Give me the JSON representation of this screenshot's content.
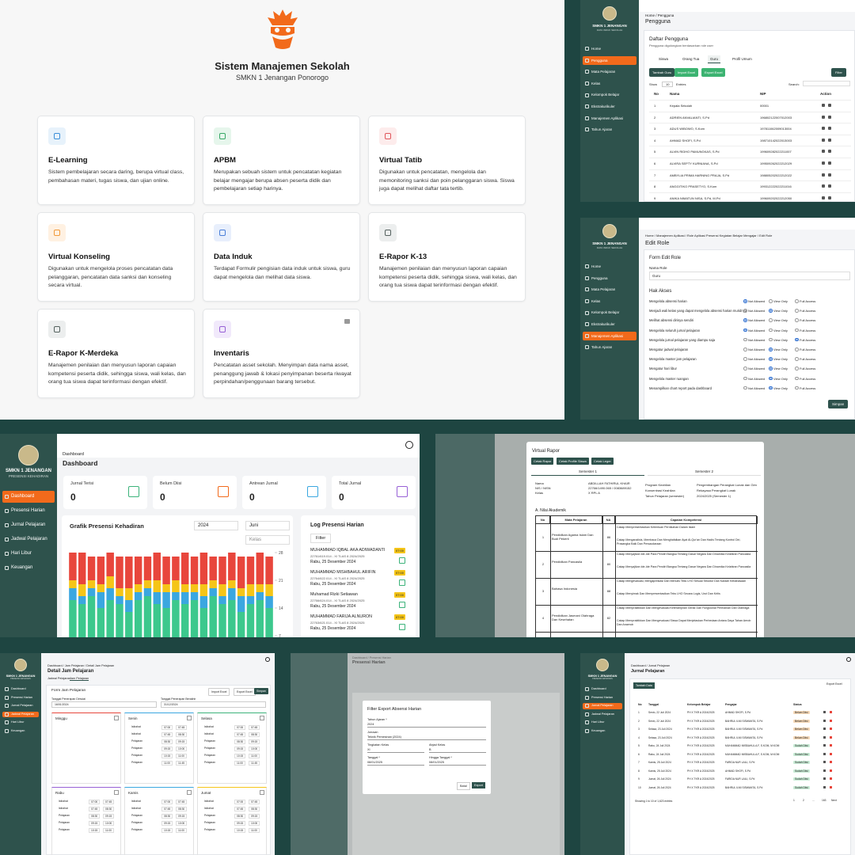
{
  "home": {
    "title": "Sistem Manajemen Sekolah",
    "subtitle": "SMKN 1 Jenangan Ponorogo",
    "cards": [
      {
        "title": "E-Learning",
        "desc": "Sistem pembelajaran secara daring, berupa virtual class, pembahasan materi, tugas siswa, dan ujian online."
      },
      {
        "title": "APBM",
        "desc": "Merupakan sebuah sistem untuk pencatatan kegiatan belajar mengajar berupa absen peserta didik dan pembelajaran setiap harinya."
      },
      {
        "title": "Virtual Tatib",
        "desc": "Digunakan untuk pencatatan, mengelola dan memonitoring sanksi dan poin pelanggaran siswa. Siswa juga dapat melihat daftar tata tertib."
      },
      {
        "title": "Virtual Konseling",
        "desc": "Digunakan untuk mengelola proses pencatatan data pelanggaran, pencatatan data sanksi dan konseling secara virtual."
      },
      {
        "title": "Data Induk",
        "desc": "Terdapat Formulir pengisian data induk untuk siswa, guru dapat mengelola dan melihat data siswa."
      },
      {
        "title": "E-Rapor K-13",
        "desc": "Manajemen penilaian dan menyusun laporan capaian kompetensi peserta didik, sehingga siswa, wali kelas, dan orang tua siswa dapat terinformasi dengan efektif."
      },
      {
        "title": "E-Rapor K-Merdeka",
        "desc": "Manajemen penilaian dan menyusun laporan capaian kompetensi peserta didik, sehingga siswa, wali kelas, dan orang tua siswa dapat terinformasi dengan efektif."
      },
      {
        "title": "Inventaris",
        "desc": "Pencatatan asset sekolah. Menyimpan data nama asset, penanggung jawab & lokasi penyimpanan beserta riwayat perpindahan/penggunaan barang tersebut."
      }
    ]
  },
  "pengguna": {
    "school": "SMKN 1 JENANGAN",
    "school_sub": "DATA INDUK SEKOLAH",
    "menu": [
      "Home",
      "Pengguna",
      "Mata Pelajaran",
      "Kelas",
      "Kelompok Belajar",
      "Ekstrakurikuler",
      "Manajemen Aplikasi",
      "Tahun Ajaran"
    ],
    "breadcrumb": "Home / Pengguna",
    "heading": "Pengguna",
    "card_title": "Daftar Pengguna",
    "card_sub": "Pengguna digolongkan berdasarkan role user",
    "tabs": [
      "Siswa",
      "Orang Tua",
      "Guru",
      "Profil Umum"
    ],
    "buttons": [
      "Tambah Guru",
      "Import Excel",
      "Export Excel"
    ],
    "filter": "Filter",
    "show": "Show",
    "show_n": "10",
    "entries": "Entries",
    "search": "Search:",
    "columns": [
      "No",
      "Nama",
      "NIP",
      "Action"
    ],
    "rows": [
      [
        "1",
        "Kepala Sekolah",
        "00001"
      ],
      [
        "2",
        "ADRIEN ANVALIANTI, S.Pd",
        "196802122007012003"
      ],
      [
        "3",
        "ADUS WIBOWO, S.Kom",
        "197811062009013004"
      ],
      [
        "4",
        "AHMAD SHOFI, S.Pd",
        "198710142022013003"
      ],
      [
        "5",
        "ALVIN RIDHO PAMUNGKAS, S.Pd",
        "199609282022211007"
      ],
      [
        "6",
        "ALVIRA SEPTY KURNIANA, S.Pd",
        "199509262022212029"
      ],
      [
        "7",
        "AMBYLIA PRIMA HARNING PRAJA, S.Pd",
        "198805202022212022"
      ],
      [
        "8",
        "ANGGITIKO PRASETYO, S.Kom",
        "199312222022211016"
      ],
      [
        "9",
        "ANIKA NIMATUN NISA, S.Pd, M.Pd",
        "199609202022212050"
      ]
    ]
  },
  "edit_role": {
    "breadcrumb": "Home / Manajemen Aplikasi / Role Aplikasi Presensi Kegiatan Belajar Mengajar / Edit Role",
    "heading": "Edit Role",
    "form_title": "Form Edit Role",
    "name_label": "Nama Role",
    "name_value": "Guru",
    "access_title": "Hak Akses",
    "options": [
      "Not Allowed",
      "View Only",
      "Full Access"
    ],
    "permissions": [
      {
        "label": "Mengelola absensi harian",
        "selected": 0
      },
      {
        "label": "Menjadi wali kelas yang dapat mengelola absensi harian muridnya",
        "selected": 1
      },
      {
        "label": "Melihat absensi dirinya sendiri",
        "selected": 0
      },
      {
        "label": "Mengelola seluruh jurnal pelajaran",
        "selected": 0
      },
      {
        "label": "Mengelola jurnal pelajaran yang diampu saja",
        "selected": 2
      },
      {
        "label": "Mengatur jadwal pelajaran",
        "selected": 1
      },
      {
        "label": "Mengelola master jam pelajaran",
        "selected": 1
      },
      {
        "label": "Mengatur hari libur",
        "selected": 1
      },
      {
        "label": "Mengelola master ruangan",
        "selected": 1
      },
      {
        "label": "Menampilkan chart report pada dashboard",
        "selected": 1
      }
    ],
    "save": "Simpan"
  },
  "dashboard": {
    "school": "SMKN 1 JENANGAN",
    "school_sub": "PRESENSI KEHADIRAN",
    "menu": [
      "Dashboard",
      "Presensi Harian",
      "Jurnal Pelajaran",
      "Jadwal Pelajaran",
      "Hari Libur",
      "Keuangan"
    ],
    "breadcrumb": "Dashboard",
    "heading": "Dashboard",
    "stats": [
      {
        "label": "Jurnal Terisi",
        "value": "0"
      },
      {
        "label": "Belum Diisi",
        "value": "0"
      },
      {
        "label": "Antrean Jurnal",
        "value": "0"
      },
      {
        "label": "Total Jurnal",
        "value": "0"
      }
    ],
    "year": "2024",
    "month": "Juni",
    "class": "Kelas",
    "log_title": "Log Presensi Harian",
    "filter": "Filter",
    "log": [
      {
        "name": "MUHAMMAD IQBAL AKA ADIWADANTI",
        "id": "22761/619.014 - XI TLAS 8 2024/2025",
        "date": "Rabu, 25 Desember 2024",
        "badge": "07:00"
      },
      {
        "name": "MUHAMMAD MISHBAHUL ARIFIN",
        "id": "22764/622.014 - XI TLAS 8 2024/2025",
        "date": "Rabu, 25 Desember 2024",
        "badge": "07:00"
      },
      {
        "name": "Muhamad Rizki Setiawan",
        "id": "22766/624.014 - XI TLAS 8 2024/2025",
        "date": "Rabu, 25 Desember 2024",
        "badge": "07:00"
      },
      {
        "name": "MUHAMMAD FARIJA ALNURON",
        "id": "22763/621.014 - XI TLAS 8 2024/2025",
        "date": "Rabu, 25 Desember 2024",
        "badge": "07:00"
      }
    ]
  },
  "chart_data": {
    "type": "bar",
    "stacked": true,
    "title": "Grafik Presensi Kehadiran",
    "categories": [
      null,
      null,
      null,
      null,
      null,
      null,
      null,
      null,
      null,
      null,
      null,
      null,
      null,
      null,
      null,
      null,
      null,
      null,
      null,
      null,
      null,
      null
    ],
    "series": [
      {
        "color": "#3cc88d",
        "values": [
          16,
          15,
          17,
          14,
          16,
          15,
          13,
          16,
          17,
          15,
          14,
          16,
          15,
          16,
          14,
          17,
          15,
          16,
          13,
          15,
          16,
          14
        ]
      },
      {
        "color": "#3aa7e0",
        "values": [
          3,
          2,
          2,
          4,
          3,
          2,
          3,
          2,
          2,
          3,
          4,
          2,
          3,
          2,
          3,
          2,
          2,
          3,
          4,
          2,
          2,
          3
        ]
      },
      {
        "color": "#f5c518",
        "values": [
          2,
          3,
          2,
          2,
          3,
          2,
          3,
          2,
          2,
          3,
          2,
          3,
          2,
          2,
          3,
          2,
          3,
          2,
          2,
          3,
          2,
          3
        ]
      },
      {
        "color": "#e8463c",
        "values": [
          7,
          8,
          6,
          7,
          6,
          8,
          8,
          7,
          6,
          7,
          7,
          6,
          8,
          7,
          8,
          6,
          7,
          7,
          8,
          7,
          8,
          7
        ]
      }
    ],
    "ylim": [
      0,
      28
    ],
    "yticks": [
      0,
      7,
      14,
      21,
      28
    ],
    "grid": false
  },
  "rapor": {
    "title": "Virtual Rapor",
    "buttons": [
      "Cetak Rapor",
      "Cetak Profile Siswa",
      "Cetak Leger"
    ],
    "tabs": [
      "Semester 1",
      "Semester 2"
    ],
    "info_left": [
      [
        "Nama",
        "ABDILLAH FATHIRUL KHAIR"
      ],
      [
        "NIS / NISN",
        "22766/1490.065 / 0083689152"
      ],
      [
        "Kelas",
        "X RPL A"
      ]
    ],
    "info_right": [
      [
        "Program Keahlian",
        "Pengembangan Perangkat Lunak dan Gim"
      ],
      [
        "Konsentrasi Keahlian",
        "Rekayasa Perangkat Lunak"
      ],
      [
        "Tahun Pelajaran (semester)",
        "2024/2025 (Semester 1)"
      ]
    ],
    "section": "A. Nilai Akademik",
    "columns": [
      "No",
      "Mata Pelajaran",
      "NA",
      "Capaian Kompetensi"
    ],
    "rows": [
      {
        "no": "1",
        "subject": "Pendidikan Agama Islam Dan Budi Pekerti",
        "na": "86",
        "notes": [
          "Cakap Mempresentasikan Ketentuan Pernikahan Dalam Islam",
          "Cakap Menganalisis, Membaca Dan Menghafalkan Ayat Al-Qur'an Dan Hadis Tentang Kontrol Diri, Prasangka Baik Dan Persaudaraan"
        ]
      },
      {
        "no": "2",
        "subject": "Pendidikan Pancasila",
        "na": "80",
        "notes": [
          "Cakap Menyajikan Ide-Ide Para Pendiri Bangsa Tentang Dasar Negara Dan Dinamika Kelahiran Pancasila",
          "Cakap Menyajikan Ide-Ide Para Pendiri Bangsa Tentang Dasar Negara Dan Dinamika Kelahiran Pancasila"
        ]
      },
      {
        "no": "3",
        "subject": "Bahasa Indonesia",
        "na": "88",
        "notes": [
          "Cakap Mengevaluasi, Mengapresiasi Dan Menulis Teks LHO Sesuai Struktur Dan Kaidah Kebahasaan",
          "Cakap Menyimak Dan Mempresentasikan Teks LHO Secara Logis, Urut Dan Kritis"
        ]
      },
      {
        "no": "4",
        "subject": "Pendidikan Jasmani Olahraga Dan Kesehatan",
        "na": "82",
        "notes": [
          "Cakap Mempraktikkan Dan Mengevaluasi Keterampilan Gerak Dan Fungsional Permainan Dan Olahraga",
          "Cakap Mempraktikkan Dan Mengevaluasi Siswa Dapat Menjelaskan Perbedaan Antara Daya Tahan Aerob Dan Anaerob"
        ]
      }
    ]
  },
  "jadwal": {
    "school": "SMKN 1 JENANGAN",
    "school_sub": "PRESENSI KEHADIRAN",
    "menu": [
      "Dashboard",
      "Presensi Harian",
      "Jurnal Pelajaran",
      "Jadwal Pelajaran",
      "Hari Libur",
      "Keuangan"
    ],
    "breadcrumb": "Dashboard / Jam Pelajaran / Detail Jam Pelajaran",
    "heading": "Detail Jam Pelajaran",
    "tabs": [
      "Jadwal Pelajaran",
      "Jam Pelajaran"
    ],
    "form_title": "Form Jam Pelajaran",
    "buttons": [
      "Import Excel",
      "Export Excel",
      "Simpan"
    ],
    "start_label": "Tanggal Penerapan Dimulai",
    "start_value": "16/01/2024",
    "end_label": "Tanggal Penerapan Berakhir",
    "end_value": "31/12/2024",
    "days": [
      {
        "name": "Minggu",
        "slots": []
      },
      {
        "name": "Senin",
        "slots": [
          [
            "Istirahat",
            "07:00",
            "07:45"
          ],
          [
            "Istirahat",
            "07:45",
            "08:30"
          ],
          [
            "Pelajaran",
            "08:30",
            "09:15"
          ],
          [
            "Pelajaran",
            "09:15",
            "10:00"
          ],
          [
            "Pelajaran",
            "10:15",
            "11:00"
          ],
          [
            "Pelajaran",
            "11:00",
            "11:45"
          ]
        ]
      },
      {
        "name": "Selasa",
        "slots": [
          [
            "Istirahat",
            "07:00",
            "07:45"
          ],
          [
            "Istirahat",
            "07:45",
            "08:30"
          ],
          [
            "Pelajaran",
            "08:30",
            "09:15"
          ],
          [
            "Pelajaran",
            "09:15",
            "10:00"
          ],
          [
            "Pelajaran",
            "10:15",
            "11:00"
          ],
          [
            "Pelajaran",
            "11:00",
            "11:45"
          ]
        ]
      },
      {
        "name": "Rabu",
        "slots": [
          [
            "Istirahat",
            "07:00",
            "07:45"
          ],
          [
            "Istirahat",
            "07:45",
            "08:30"
          ],
          [
            "Pelajaran",
            "08:30",
            "09:15"
          ],
          [
            "Pelajaran",
            "09:15",
            "10:00"
          ],
          [
            "Pelajaran",
            "10:15",
            "11:00"
          ]
        ]
      },
      {
        "name": "Kamis",
        "slots": [
          [
            "Istirahat",
            "07:00",
            "07:45"
          ],
          [
            "Istirahat",
            "07:45",
            "08:30"
          ],
          [
            "Pelajaran",
            "08:30",
            "09:15"
          ],
          [
            "Pelajaran",
            "09:15",
            "10:00"
          ],
          [
            "Pelajaran",
            "10:15",
            "11:00"
          ]
        ]
      },
      {
        "name": "Jumat",
        "slots": [
          [
            "Istirahat",
            "07:00",
            "07:45"
          ],
          [
            "Istirahat",
            "07:45",
            "08:30"
          ],
          [
            "Pelajaran",
            "08:30",
            "09:15"
          ],
          [
            "Pelajaran",
            "09:15",
            "10:00"
          ],
          [
            "Pelajaran",
            "10:15",
            "11:00"
          ]
        ]
      }
    ]
  },
  "export": {
    "modal_title": "Filter Export Absensi Harian",
    "fields": [
      {
        "label": "Tahun Ajaran *",
        "value": "2024"
      },
      {
        "label": "Jurusan",
        "value": "Teknik Pemesinan (2024)"
      },
      {
        "label": "Tingkatan Kelas",
        "value": "XI"
      },
      {
        "label": "Abjad Kelas",
        "value": "B"
      },
      {
        "label": "Tanggal *",
        "value": "08/01/2025"
      },
      {
        "label": "Hingga Tanggal *",
        "value": "08/01/2025"
      }
    ],
    "cancel": "Batal",
    "submit": "Export",
    "heading": "Presensi Harian",
    "breadcrumb": "Dashboard / Presensi Harian"
  },
  "jurnal": {
    "school": "SMKN 1 JENANGAN",
    "school_sub": "PRESENSI KEHADIRAN",
    "menu": [
      "Dashboard",
      "Presensi Harian",
      "Jurnal Pelajaran",
      "Jadwal Pelajaran",
      "Hari Libur",
      "Keuangan"
    ],
    "breadcrumb": "Dashboard / Jurnal Pelajaran",
    "heading": "Jurnal Pelajaran",
    "add": "Tambah Data",
    "export": "Export Excel",
    "columns": [
      "No",
      "Tanggal",
      "Kelompok Belajar",
      "Pengajar",
      "Status"
    ],
    "rows": [
      [
        "1",
        "Senin, 22 Juli 2024",
        "PH X TKR A 2024/2025",
        "AHMAD SHOFI, S.Pd",
        "Belum Diisi"
      ],
      [
        "2",
        "Senin, 22 Juli 2024",
        "PH X TKR A 2024/2025",
        "BAHRUL ILMI SISWANTA, S.Pd",
        "Belum Diisi"
      ],
      [
        "3",
        "Selasa, 23 Juli 2024",
        "PH X TKR A 2024/2025",
        "BAHRUL ILMI SISWANTA, S.Pd",
        "Belum Diisi"
      ],
      [
        "4",
        "Selasa, 23 Juli 2024",
        "PH X TKR A 2024/2025",
        "BAHRUL ILMI SISWANTA, S.Pd",
        "Belum Diisi"
      ],
      [
        "5",
        "Rabu, 24 Juli 2024",
        "PH X TKR A 2024/2025",
        "MUHAMMAD MISBAHUL A.F, S.KOM, M.KOM",
        "Sudah Diisi"
      ],
      [
        "6",
        "Rabu, 24 Juli 2024",
        "PH X TKR A 2024/2025",
        "MUHAMMAD MISBAHUL A.F, S.KOM, M.KOM",
        "Sudah Diisi"
      ],
      [
        "7",
        "Kamis, 25 Juli 2024",
        "PH X TKR A 2024/2025",
        "FARIDA NUR LAILI, S.Pd",
        "Sudah Diisi"
      ],
      [
        "8",
        "Kamis, 25 Juli 2024",
        "PH X TKR A 2024/2025",
        "AHMAD SHOFI, S.Pd",
        "Sudah Diisi"
      ],
      [
        "9",
        "Jumat, 26 Juli 2024",
        "PH X TKR A 2024/2025",
        "FARIDA NUR LAILI, S.Pd",
        "Sudah Diisi"
      ],
      [
        "10",
        "Jumat, 26 Juli 2024",
        "PH X TKR A 2024/2025",
        "BAHRUL ILMI SISWANTA, S.Pd",
        "Sudah Diisi"
      ]
    ],
    "footer": "Showing 1 to 10 of 1,623 entries",
    "pages": [
      "1",
      "2",
      "...",
      "163",
      "Next"
    ]
  }
}
